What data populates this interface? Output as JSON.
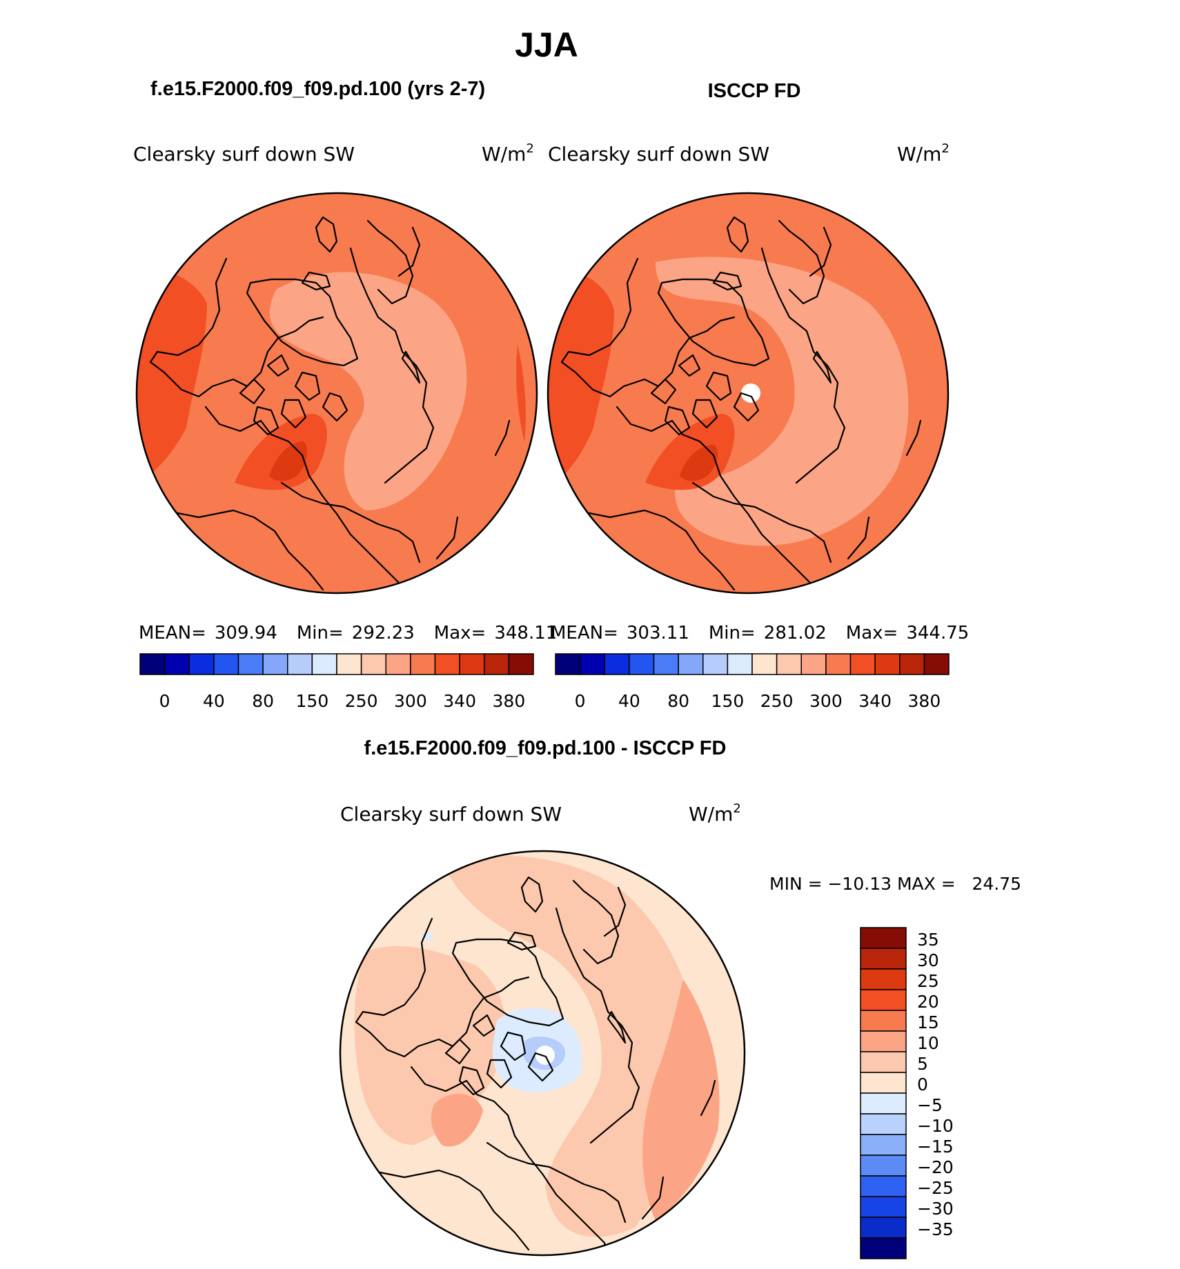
{
  "figure": {
    "season": "JJA",
    "left_panel_title": "f.e15.F2000.f09_f09.pd.100 (yrs 2-7)",
    "right_panel_title": "ISCCP FD",
    "diff_panel_title": "f.e15.F2000.f09_f09.pd.100 - ISCCP FD"
  },
  "panels": {
    "model": {
      "variable": "Clearsky surf down SW",
      "units": "W/m",
      "units_exp": "2",
      "mean_label": "MEAN=",
      "mean": "309.94",
      "min_label": "Min=",
      "min": "292.23",
      "max_label": "Max=",
      "max": "348.11"
    },
    "obs": {
      "variable": "Clearsky surf down SW",
      "units": "W/m",
      "units_exp": "2",
      "mean_label": "MEAN=",
      "mean": "303.11",
      "min_label": "Min=",
      "min": "281.02",
      "max_label": "Max=",
      "max": "344.75"
    },
    "diff": {
      "variable": "Clearsky surf down SW",
      "units": "W/m",
      "units_exp": "2",
      "minmax_text": "MIN = −10.13 MAX =   24.75"
    }
  },
  "colorbars": {
    "abs": {
      "colors": [
        "#00007a",
        "#0000b0",
        "#0a2de0",
        "#2356f0",
        "#4a7cf7",
        "#84a7fa",
        "#b6cdfc",
        "#dcebfd",
        "#fde5d0",
        "#fcc9ae",
        "#fba586",
        "#f77b4f",
        "#f24f24",
        "#de3a11",
        "#b82508",
        "#860d06"
      ],
      "tick_labels": [
        "0",
        "40",
        "80",
        "150",
        "250",
        "300",
        "340",
        "380"
      ]
    },
    "diff": {
      "colors": [
        "#00007a",
        "#0a2dc9",
        "#1744e6",
        "#2f62f2",
        "#5d8bf6",
        "#8bb0fa",
        "#b9d2fc",
        "#dcebfd",
        "#fde5d0",
        "#fcc9ae",
        "#fba586",
        "#f77b4f",
        "#f24f24",
        "#de3a11",
        "#b82508",
        "#860d06"
      ],
      "tick_labels": [
        "35",
        "30",
        "25",
        "20",
        "15",
        "10",
        "5",
        "0",
        "−5",
        "−10",
        "−15",
        "−20",
        "−25",
        "−30",
        "−35"
      ]
    }
  },
  "map_colors": {
    "abs_base": "#f77b4f",
    "abs_high": "#f24f24",
    "abs_higher": "#de3a11",
    "abs_low": "#fba586",
    "diff_base": "#fde5d0",
    "diff_pos": "#fcc9ae",
    "diff_pos2": "#fba586",
    "diff_neg": "#dcebfd",
    "diff_neg2": "#b6cdfc",
    "diff_neg3": "#84a7fa"
  }
}
